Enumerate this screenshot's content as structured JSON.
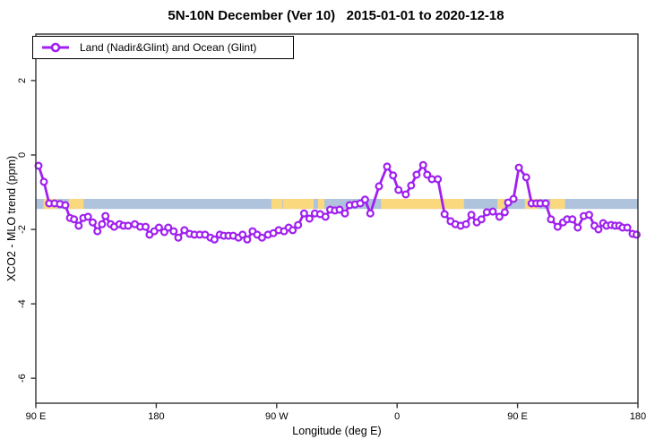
{
  "title": "5N-10N December (Ver 10)   2015-01-01 to 2020-12-18",
  "legend": {
    "label": "Land (Nadir&Glint) and Ocean (Glint)"
  },
  "axes": {
    "x_label": "Longitude (deg E)",
    "y_label": "XCO2 - MLO trend (ppm)"
  },
  "colors": {
    "series": "#A020F0",
    "marker_fill": "#ffffff",
    "ocean_band": "#AFC3DC",
    "land_band": "#FAD87E",
    "axis": "#333333",
    "text": "#000000"
  },
  "chart_data": {
    "type": "line",
    "title": "5N-10N December (Ver 10)   2015-01-01 to 2020-12-18",
    "xlabel": "Longitude (deg E)",
    "ylabel": "XCO2 - MLO trend (ppm)",
    "xlim": [
      90,
      540
    ],
    "ylim": [
      -6.67,
      3.25
    ],
    "x_axis_note": "axis runs 90E eastward across dateline and 0, repeating 90E-180; tick positions in plot degrees",
    "x_ticks": [
      {
        "pos": 90,
        "label": "90 E"
      },
      {
        "pos": 180,
        "label": "180"
      },
      {
        "pos": 270,
        "label": "90 W"
      },
      {
        "pos": 360,
        "label": "0"
      },
      {
        "pos": 450,
        "label": "90 E"
      },
      {
        "pos": 540,
        "label": "180"
      }
    ],
    "y_ticks": [
      {
        "pos": 2,
        "label": "2"
      },
      {
        "pos": 0,
        "label": "0"
      },
      {
        "pos": -2,
        "label": "-2"
      },
      {
        "pos": -4,
        "label": "-4"
      },
      {
        "pos": -6,
        "label": "-6"
      }
    ],
    "grid": false,
    "legend_position": "top-left",
    "map_strip": {
      "description": "horizontal strip marking ocean (blue) and land (yellow) along the 5N-10N band",
      "y_range": [
        -1.45,
        -1.18
      ],
      "land_segments": [
        [
          95.6,
          105.6
        ],
        [
          114.6,
          125.7
        ],
        [
          266.0,
          274.3
        ],
        [
          274.9,
          297.6
        ],
        [
          300.9,
          305.7
        ],
        [
          348.0,
          410.0
        ],
        [
          434.9,
          440.3
        ],
        [
          455.5,
          465.5
        ],
        [
          474.5,
          485.5
        ]
      ]
    },
    "series": [
      {
        "name": "Land (Nadir&Glint) and Ocean (Glint)",
        "marker": "open-circle",
        "x": [
          92.0,
          96.0,
          100.0,
          104.0,
          108.0,
          112.0,
          115.5,
          118.5,
          122.0,
          125.5,
          129.0,
          132.5,
          136.0,
          139.5,
          142.0,
          146.0,
          148.5,
          152.5,
          155.5,
          159.0,
          164.0,
          168.0,
          172.0,
          175.0,
          178.5,
          182.0,
          186.0,
          189.0,
          193.0,
          196.5,
          201.0,
          205.0,
          208.5,
          212.5,
          216.5,
          220.5,
          223.5,
          227.5,
          230.5,
          234.0,
          237.5,
          241.5,
          244.5,
          248.0,
          252.0,
          255.5,
          259.0,
          263.5,
          267.5,
          271.5,
          275.5,
          279.0,
          282.0,
          286.0,
          290.5,
          294.5,
          298.5,
          302.5,
          306.5,
          310.0,
          313.5,
          317.0,
          321.0,
          324.5,
          328.5,
          332.5,
          336.0,
          340.0,
          346.5,
          352.5,
          357.0,
          361.0,
          366.5,
          370.5,
          374.5,
          379.5,
          382.5,
          386.0,
          390.5,
          395.5,
          400.0,
          403.5,
          407.5,
          411.5,
          415.5,
          419.5,
          423.0,
          427.0,
          431.5,
          436.5,
          440.5,
          443.0,
          447.0,
          451.0,
          456.5,
          460.5,
          464.0,
          467.0,
          471.0,
          475.0,
          480.0,
          484.0,
          487.0,
          491.0,
          495.0,
          499.5,
          503.5,
          507.5,
          510.5,
          514.0,
          516.5,
          520.0,
          523.0,
          526.0,
          528.5,
          532.0,
          536.0,
          539.0
        ],
        "y": [
          -0.29,
          -0.72,
          -1.3,
          -1.3,
          -1.32,
          -1.35,
          -1.69,
          -1.73,
          -1.9,
          -1.69,
          -1.66,
          -1.81,
          -2.05,
          -1.86,
          -1.64,
          -1.86,
          -1.93,
          -1.86,
          -1.9,
          -1.9,
          -1.86,
          -1.93,
          -1.93,
          -2.14,
          -2.05,
          -1.95,
          -2.07,
          -1.95,
          -2.05,
          -2.22,
          -2.02,
          -2.12,
          -2.14,
          -2.14,
          -2.14,
          -2.22,
          -2.27,
          -2.14,
          -2.17,
          -2.17,
          -2.17,
          -2.22,
          -2.14,
          -2.27,
          -2.05,
          -2.14,
          -2.22,
          -2.14,
          -2.1,
          -2.02,
          -2.05,
          -1.95,
          -2.02,
          -1.88,
          -1.57,
          -1.71,
          -1.57,
          -1.59,
          -1.66,
          -1.47,
          -1.49,
          -1.47,
          -1.57,
          -1.35,
          -1.33,
          -1.3,
          -1.2,
          -1.57,
          -0.84,
          -0.31,
          -0.55,
          -0.94,
          -1.06,
          -0.82,
          -0.53,
          -0.27,
          -0.53,
          -0.65,
          -0.65,
          -1.59,
          -1.78,
          -1.86,
          -1.9,
          -1.86,
          -1.61,
          -1.81,
          -1.73,
          -1.54,
          -1.52,
          -1.66,
          -1.54,
          -1.28,
          -1.18,
          -0.34,
          -0.6,
          -1.3,
          -1.3,
          -1.3,
          -1.3,
          -1.73,
          -1.93,
          -1.81,
          -1.73,
          -1.73,
          -1.95,
          -1.64,
          -1.61,
          -1.9,
          -2.0,
          -1.83,
          -1.9,
          -1.88,
          -1.9,
          -1.9,
          -1.95,
          -1.95,
          -2.12,
          -2.14
        ]
      }
    ]
  }
}
